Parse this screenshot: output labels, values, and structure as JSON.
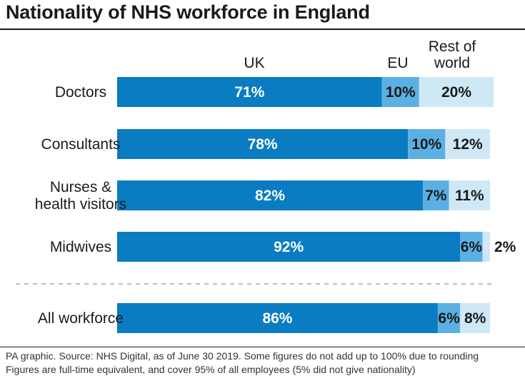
{
  "chart_data": {
    "type": "bar",
    "stacked": true,
    "orientation": "horizontal",
    "title": "Nationality of NHS workforce in England",
    "categories": [
      "Doctors",
      "Consultants",
      "Nurses & health visitors",
      "Midwives",
      "All workforce"
    ],
    "category_lines": [
      [
        "Doctors"
      ],
      [
        "Consultants"
      ],
      [
        "Nurses &",
        "health visitors"
      ],
      [
        "Midwives"
      ],
      [
        "All workforce"
      ]
    ],
    "column_headers": [
      [
        "UK"
      ],
      [
        "EU"
      ],
      [
        "Rest of",
        "world"
      ]
    ],
    "series": [
      {
        "name": "UK",
        "values": [
          71,
          78,
          82,
          92,
          86
        ],
        "labels": [
          "71%",
          "78%",
          "82%",
          "92%",
          "86%"
        ],
        "color": "#0a7cc1",
        "label_color": "#ffffff"
      },
      {
        "name": "EU",
        "values": [
          10,
          10,
          7,
          6,
          6
        ],
        "labels": [
          "10%",
          "10%",
          "7%",
          "6%",
          "6%"
        ],
        "color": "#5bb0e3",
        "label_color": "#1a1a1a"
      },
      {
        "name": "Rest of world",
        "values": [
          20,
          12,
          11,
          2,
          8
        ],
        "labels": [
          "20%",
          "12%",
          "11%",
          "2%",
          "8%"
        ],
        "color": "#cfe8f6",
        "label_color": "#1a1a1a"
      }
    ],
    "xlim": [
      0,
      100
    ],
    "grid": false,
    "legend": "top column headers"
  },
  "footnotes": [
    "PA graphic. Source: NHS Digital, as of June 30 2019. Some figures do not add up to 100% due to rounding",
    "Figures are full-time equivalent, and cover 95% of all employees (5% did not give nationality)"
  ]
}
